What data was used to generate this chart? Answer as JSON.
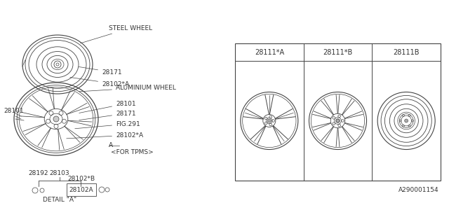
{
  "bg_color": "#ffffff",
  "line_color": "#444444",
  "text_color": "#333333",
  "part_numbers": [
    "28111*A",
    "28111*B",
    "28111B"
  ],
  "footer_text": "A290001154",
  "fs": 6.5
}
